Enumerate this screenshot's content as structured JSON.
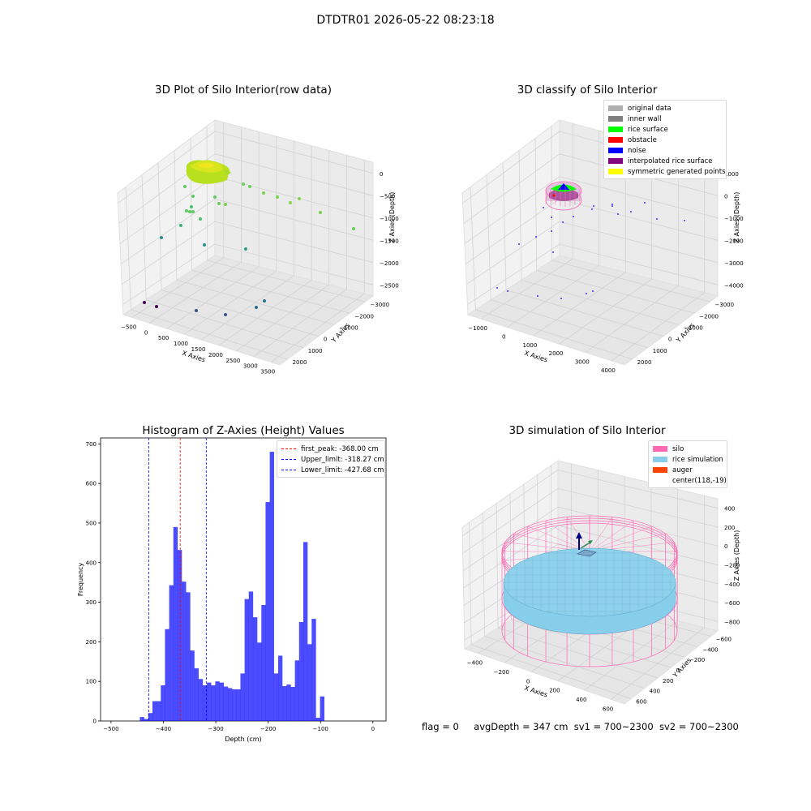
{
  "figure": {
    "suptitle": "DTDTR01 2026-05-22 08:23:18",
    "status": {
      "flag": "flag = 0",
      "avg_depth": "avgDepth = 347 cm",
      "sv1": "sv1 = 700~2300",
      "sv2": "sv2 = 700~2300"
    }
  },
  "chart_data": [
    {
      "type": "scatter",
      "subtype": "3d",
      "title": "3D Plot of Silo Interior(row data)",
      "xlabel": "X Axies",
      "ylabel": "Y Axies",
      "zlabel": "Z Axies (Depth)",
      "x_ticks": [
        "−500",
        "0",
        "500",
        "1000",
        "1500",
        "2000",
        "2500",
        "3000",
        "3500"
      ],
      "y_ticks": [
        "−3000",
        "−2000",
        "−1000",
        "0",
        "1000",
        "2000"
      ],
      "z_ticks": [
        "0",
        "−500",
        "−1000",
        "−1500",
        "−2000",
        "−2500"
      ],
      "colormap": [
        "#440154",
        "#3b528b",
        "#21918c",
        "#5ec962",
        "#fde725"
      ],
      "grid": true
    },
    {
      "type": "scatter",
      "subtype": "3d",
      "title": "3D classify of Silo Interior",
      "xlabel": "X Axies",
      "ylabel": "Y Axies",
      "zlabel": "Z Axies (Depth)",
      "x_ticks": [
        "−1000",
        "0",
        "1000",
        "2000",
        "3000",
        "4000"
      ],
      "y_ticks": [
        "−3000",
        "−2000",
        "−1000",
        "0",
        "1000",
        "2000"
      ],
      "z_ticks": [
        "1000",
        "0",
        "−1000",
        "−2000",
        "−3000",
        "−4000"
      ],
      "legend": [
        {
          "label": "original data",
          "color": "#b0b0b0"
        },
        {
          "label": "inner wall",
          "color": "#808080"
        },
        {
          "label": "rice surface",
          "color": "#00ff00"
        },
        {
          "label": "obstacle",
          "color": "#ff0000"
        },
        {
          "label": "noise",
          "color": "#0000ff"
        },
        {
          "label": "interpolated rice surface",
          "color": "#800080"
        },
        {
          "label": "symmetric generated points",
          "color": "#ffff00"
        }
      ],
      "legend_position": "top-right",
      "grid": true
    },
    {
      "type": "bar",
      "subtype": "histogram",
      "title": "Histogram of Z-Axies (Height) Values",
      "xlabel": "Depth (cm)",
      "ylabel": "Frequency",
      "xlim": [
        -520,
        25
      ],
      "ylim": [
        0,
        715
      ],
      "x_ticks": [
        -500,
        -400,
        -300,
        -200,
        -100,
        0
      ],
      "x_tick_labels": [
        "−500",
        "−400",
        "−300",
        "−200",
        "−100",
        "0"
      ],
      "y_ticks": [
        0,
        100,
        200,
        300,
        400,
        500,
        600,
        700
      ],
      "bin_start": -445,
      "bin_width": 8,
      "values": [
        10,
        5,
        20,
        50,
        50,
        90,
        232,
        343,
        490,
        432,
        352,
        325,
        178,
        133,
        106,
        90,
        97,
        90,
        100,
        97,
        87,
        83,
        80,
        80,
        120,
        308,
        327,
        262,
        198,
        293,
        553,
        680,
        120,
        165,
        88,
        92,
        86,
        153,
        250,
        452,
        194,
        258,
        8,
        62
      ],
      "bar_color": "#0000ff",
      "bar_alpha": 0.7,
      "lines": [
        {
          "label": "first_peak: -368.00 cm",
          "x": -368.0,
          "color": "#ff0000"
        },
        {
          "label": "Upper_limit: -318.27 cm",
          "x": -318.27,
          "color": "#0000ff"
        },
        {
          "label": "Lower_limit: -427.68 cm",
          "x": -427.68,
          "color": "#0000ff"
        }
      ],
      "legend_position": "top-right",
      "grid": false
    },
    {
      "type": "scatter",
      "subtype": "3d-wireframe",
      "title": "3D simulation of Silo Interior",
      "xlabel": "X Axies",
      "ylabel": "Y Axies",
      "zlabel": "Z Axies (Depth)",
      "x_ticks": [
        "−400",
        "−200",
        "0",
        "200",
        "400",
        "600"
      ],
      "y_ticks": [
        "−600",
        "−400",
        "−200",
        "0",
        "200",
        "400",
        "600"
      ],
      "z_ticks": [
        "400",
        "200",
        "0",
        "−200",
        "−400",
        "−600",
        "−800"
      ],
      "legend": [
        {
          "label": "silo",
          "color": "#ff69b4"
        },
        {
          "label": "rice simulation",
          "color": "#87ceeb"
        },
        {
          "label": "auger",
          "color": "#ff4500"
        },
        {
          "label": "center(118,-19)",
          "color": ""
        }
      ],
      "legend_position": "top-right",
      "grid": true
    }
  ]
}
